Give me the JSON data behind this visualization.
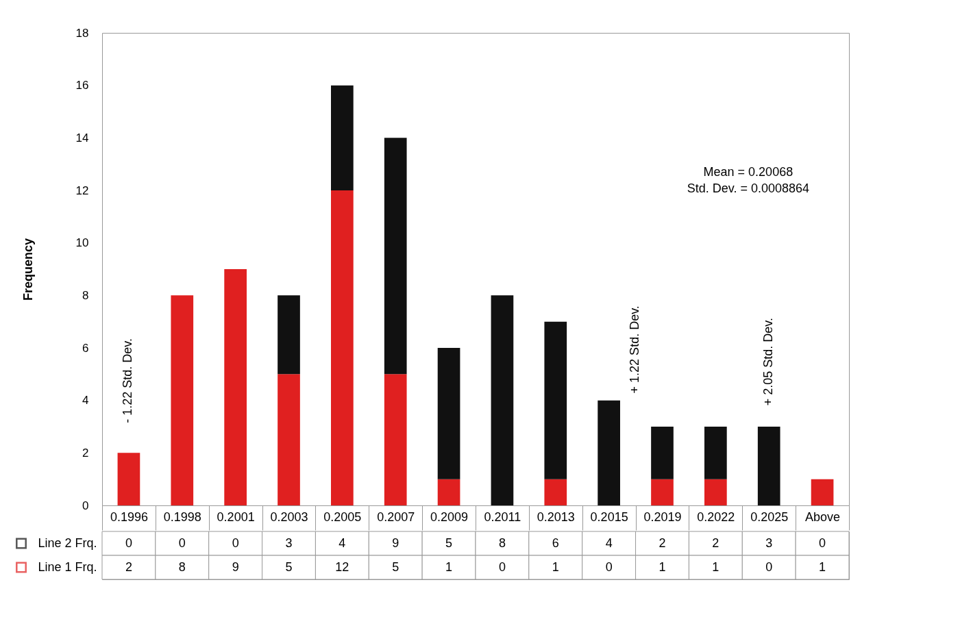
{
  "chart_data": {
    "type": "bar",
    "ylabel": "Frequency",
    "categories": [
      "0.1996",
      "0.1998",
      "0.2001",
      "0.2003",
      "0.2005",
      "0.2007",
      "0.2009",
      "0.2011",
      "0.2013",
      "0.2015",
      "0.2019",
      "0.2022",
      "0.2025",
      "Above"
    ],
    "stacked": true,
    "ylim": [
      0,
      18
    ],
    "yticks": [
      0,
      2,
      4,
      6,
      8,
      10,
      12,
      14,
      16,
      18
    ],
    "grid": false,
    "data_labels": true,
    "legend": "bottom left",
    "series": [
      {
        "name": "Line 1 Frq.",
        "color": "#e02020",
        "values": [
          2,
          8,
          9,
          5,
          12,
          5,
          1,
          0,
          1,
          0,
          1,
          1,
          0,
          1
        ]
      },
      {
        "name": "Line 2 Frq.",
        "color": "#111111",
        "values": [
          0,
          0,
          0,
          3,
          4,
          9,
          5,
          8,
          6,
          4,
          2,
          2,
          3,
          0
        ]
      }
    ],
    "annotations": [
      "Mean = 0.20068",
      "Std. Dev. = 0.0008864",
      "- 1.22 Std. Dev.",
      "+ 1.22 Std. Dev.",
      "+ 2.05 Std. Dev."
    ]
  }
}
